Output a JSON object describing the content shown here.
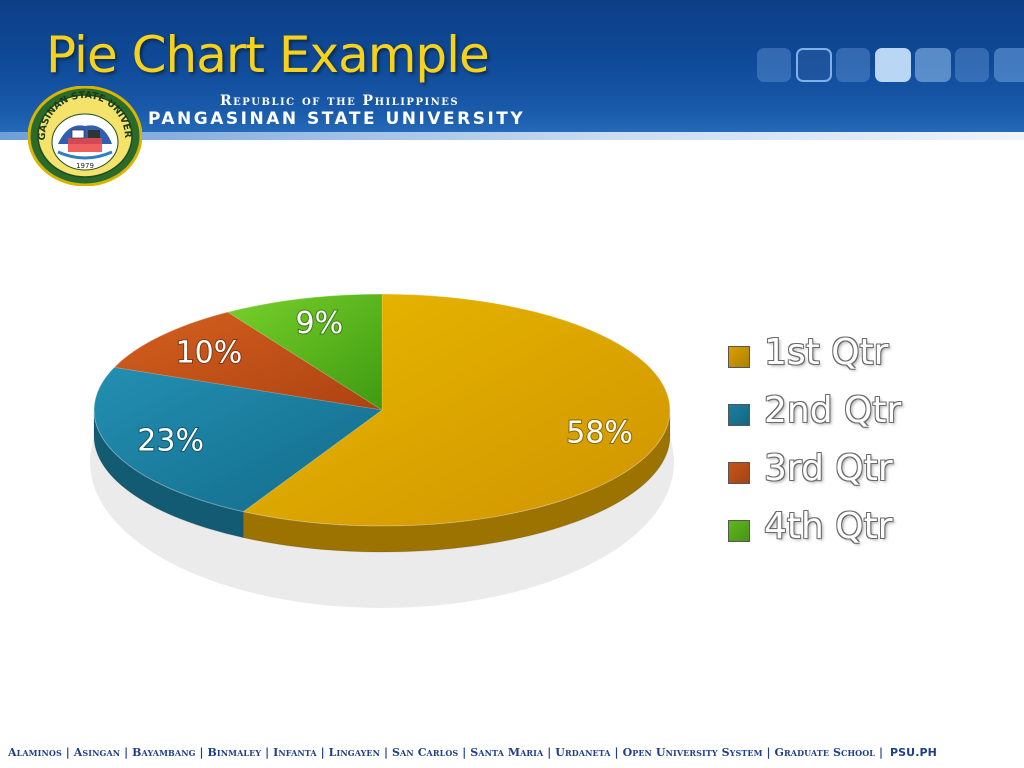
{
  "header": {
    "title": "Pie Chart Example",
    "republic_line": "Republic of the Philippines",
    "university_line": "PANGASINAN STATE UNIVERSITY"
  },
  "seal": {
    "top_text": "PANGASINAN STATE UNIVERSITY",
    "year": "1979"
  },
  "chart_data": {
    "type": "pie",
    "categories": [
      "1st Qtr",
      "2nd Qtr",
      "3rd Qtr",
      "4th Qtr"
    ],
    "values": [
      58,
      23,
      10,
      9
    ],
    "labels": [
      "58%",
      "23%",
      "10%",
      "9%"
    ],
    "colors": [
      "#d9a000",
      "#1a7fa0",
      "#c9541a",
      "#5cb81d"
    ],
    "legend_position": "right",
    "style": "3d"
  },
  "footer": {
    "text": "Alaminos | Asingan | Bayambang | Binmaley | Infanta | Lingayen | San Carlos | Santa Maria | Urdaneta | Open University System | Graduate School |",
    "site": "PSU.PH"
  }
}
